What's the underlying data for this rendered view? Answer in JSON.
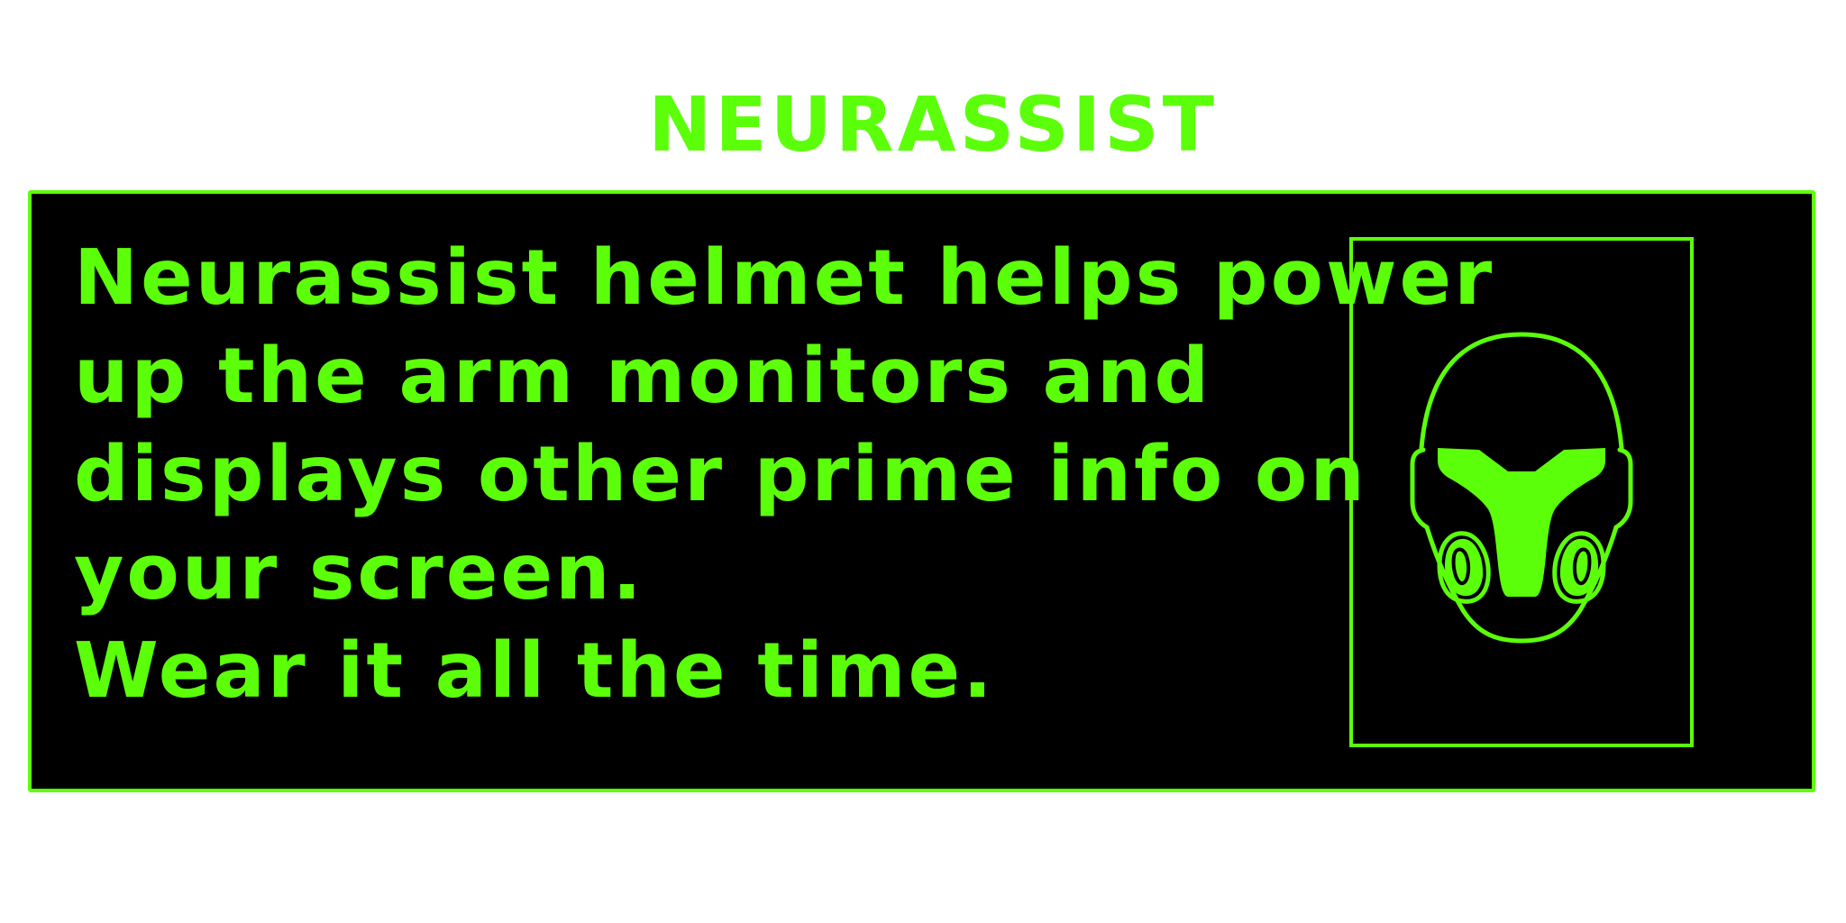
{
  "header": {
    "title": "NEURASSIST"
  },
  "message": {
    "lines": [
      "Neurassist helmet helps power",
      "up the arm monitors and",
      "displays other prime info on",
      "your screen.",
      "Wear it all the time."
    ]
  },
  "illustration": {
    "icon": "helmet-icon"
  },
  "colors": {
    "accent": "#5cff0a",
    "panel_background": "#000000",
    "page_background": "#ffffff"
  }
}
